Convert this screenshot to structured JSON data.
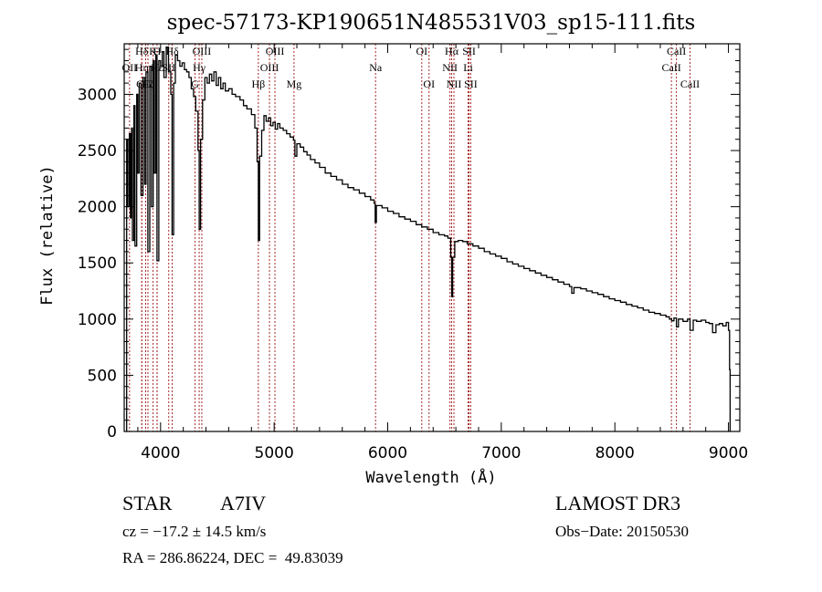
{
  "chart_data": {
    "type": "line",
    "title": "spec-57173-KP190651N485531V03_sp15-111.fits",
    "xlabel": "Wavelength (Å)",
    "ylabel": "Flux (relative)",
    "xlim": [
      3680,
      9100
    ],
    "ylim": [
      0,
      3450
    ],
    "grid": false,
    "legend": "none",
    "xticks": [
      4000,
      5000,
      6000,
      7000,
      8000,
      9000
    ],
    "xtick_labels": [
      "4000",
      "5000",
      "6000",
      "7000",
      "8000",
      "9000"
    ],
    "yticks": [
      0,
      500,
      1000,
      1500,
      2000,
      2500,
      3000
    ],
    "ytick_labels": [
      "0",
      "500",
      "1000",
      "1500",
      "2000",
      "2500",
      "3000"
    ],
    "series": [
      {
        "name": "spectrum",
        "color": "#000000",
        "points": [
          [
            3700,
            0
          ],
          [
            3702,
            2600
          ],
          [
            3712,
            2000
          ],
          [
            3725,
            2650
          ],
          [
            3735,
            1900
          ],
          [
            3745,
            2700
          ],
          [
            3752,
            1700
          ],
          [
            3765,
            2900
          ],
          [
            3775,
            1650
          ],
          [
            3790,
            3000
          ],
          [
            3800,
            2300
          ],
          [
            3812,
            3100
          ],
          [
            3828,
            2100
          ],
          [
            3845,
            3150
          ],
          [
            3860,
            2200
          ],
          [
            3872,
            3200
          ],
          [
            3888,
            1600
          ],
          [
            3905,
            3250
          ],
          [
            3920,
            2000
          ],
          [
            3935,
            3300
          ],
          [
            3945,
            2300
          ],
          [
            3958,
            3350
          ],
          [
            3969,
            1520
          ],
          [
            3985,
            3300
          ],
          [
            4000,
            3250
          ],
          [
            4015,
            3380
          ],
          [
            4030,
            3150
          ],
          [
            4050,
            3420
          ],
          [
            4070,
            3200
          ],
          [
            4090,
            3000
          ],
          [
            4101,
            1750
          ],
          [
            4115,
            3100
          ],
          [
            4130,
            3350
          ],
          [
            4150,
            3300
          ],
          [
            4170,
            3250
          ],
          [
            4190,
            3280
          ],
          [
            4210,
            3220
          ],
          [
            4230,
            3200
          ],
          [
            4250,
            3150
          ],
          [
            4270,
            3050
          ],
          [
            4290,
            2980
          ],
          [
            4310,
            2850
          ],
          [
            4330,
            2500
          ],
          [
            4340,
            1800
          ],
          [
            4352,
            2600
          ],
          [
            4370,
            2950
          ],
          [
            4390,
            3150
          ],
          [
            4410,
            3100
          ],
          [
            4430,
            3180
          ],
          [
            4450,
            3120
          ],
          [
            4470,
            3200
          ],
          [
            4490,
            3080
          ],
          [
            4510,
            3150
          ],
          [
            4530,
            3050
          ],
          [
            4550,
            3100
          ],
          [
            4570,
            3030
          ],
          [
            4600,
            3050
          ],
          [
            4630,
            3000
          ],
          [
            4660,
            2980
          ],
          [
            4700,
            2950
          ],
          [
            4730,
            2900
          ],
          [
            4760,
            2870
          ],
          [
            4800,
            2820
          ],
          [
            4830,
            2700
          ],
          [
            4850,
            2400
          ],
          [
            4861,
            1700
          ],
          [
            4872,
            2450
          ],
          [
            4890,
            2680
          ],
          [
            4910,
            2810
          ],
          [
            4930,
            2760
          ],
          [
            4950,
            2790
          ],
          [
            4970,
            2720
          ],
          [
            4990,
            2750
          ],
          [
            5010,
            2690
          ],
          [
            5030,
            2740
          ],
          [
            5050,
            2700
          ],
          [
            5080,
            2680
          ],
          [
            5110,
            2650
          ],
          [
            5140,
            2620
          ],
          [
            5170,
            2590
          ],
          [
            5183,
            2450
          ],
          [
            5200,
            2560
          ],
          [
            5230,
            2530
          ],
          [
            5260,
            2490
          ],
          [
            5290,
            2460
          ],
          [
            5320,
            2420
          ],
          [
            5360,
            2390
          ],
          [
            5400,
            2350
          ],
          [
            5450,
            2300
          ],
          [
            5500,
            2270
          ],
          [
            5550,
            2240
          ],
          [
            5600,
            2200
          ],
          [
            5650,
            2170
          ],
          [
            5700,
            2150
          ],
          [
            5750,
            2120
          ],
          [
            5800,
            2090
          ],
          [
            5850,
            2060
          ],
          [
            5880,
            2030
          ],
          [
            5890,
            1860
          ],
          [
            5900,
            2010
          ],
          [
            5950,
            1990
          ],
          [
            6000,
            1960
          ],
          [
            6050,
            1940
          ],
          [
            6100,
            1910
          ],
          [
            6150,
            1890
          ],
          [
            6200,
            1870
          ],
          [
            6250,
            1840
          ],
          [
            6300,
            1820
          ],
          [
            6350,
            1800
          ],
          [
            6400,
            1770
          ],
          [
            6450,
            1750
          ],
          [
            6500,
            1740
          ],
          [
            6530,
            1720
          ],
          [
            6555,
            1550
          ],
          [
            6563,
            1200
          ],
          [
            6572,
            1550
          ],
          [
            6590,
            1690
          ],
          [
            6620,
            1700
          ],
          [
            6660,
            1690
          ],
          [
            6700,
            1670
          ],
          [
            6750,
            1650
          ],
          [
            6800,
            1630
          ],
          [
            6850,
            1600
          ],
          [
            6900,
            1580
          ],
          [
            6950,
            1560
          ],
          [
            7000,
            1540
          ],
          [
            7050,
            1510
          ],
          [
            7100,
            1490
          ],
          [
            7150,
            1470
          ],
          [
            7200,
            1450
          ],
          [
            7250,
            1430
          ],
          [
            7300,
            1410
          ],
          [
            7350,
            1390
          ],
          [
            7400,
            1370
          ],
          [
            7450,
            1350
          ],
          [
            7500,
            1330
          ],
          [
            7550,
            1310
          ],
          [
            7600,
            1290
          ],
          [
            7620,
            1230
          ],
          [
            7640,
            1280
          ],
          [
            7700,
            1270
          ],
          [
            7750,
            1250
          ],
          [
            7800,
            1235
          ],
          [
            7850,
            1220
          ],
          [
            7900,
            1200
          ],
          [
            7950,
            1180
          ],
          [
            8000,
            1165
          ],
          [
            8050,
            1150
          ],
          [
            8100,
            1130
          ],
          [
            8150,
            1115
          ],
          [
            8200,
            1100
          ],
          [
            8250,
            1080
          ],
          [
            8300,
            1060
          ],
          [
            8350,
            1050
          ],
          [
            8400,
            1035
          ],
          [
            8450,
            1020
          ],
          [
            8480,
            1000
          ],
          [
            8500,
            985
          ],
          [
            8520,
            1010
          ],
          [
            8542,
            930
          ],
          [
            8560,
            1000
          ],
          [
            8600,
            980
          ],
          [
            8640,
            1000
          ],
          [
            8662,
            900
          ],
          [
            8690,
            990
          ],
          [
            8720,
            980
          ],
          [
            8760,
            990
          ],
          [
            8800,
            970
          ],
          [
            8830,
            960
          ],
          [
            8860,
            880
          ],
          [
            8890,
            950
          ],
          [
            8920,
            960
          ],
          [
            8950,
            940
          ],
          [
            8980,
            970
          ],
          [
            9000,
            900
          ],
          [
            9010,
            550
          ],
          [
            9015,
            0
          ]
        ]
      }
    ],
    "lines": [
      {
        "name": "Hδ-group",
        "label": "Hδ",
        "wavelength": 3835,
        "row": 0
      },
      {
        "name": "K",
        "label": "K",
        "wavelength": 3934,
        "row": 0
      },
      {
        "name": "H",
        "label": "H",
        "wavelength": 3969,
        "row": 0
      },
      {
        "name": "Hδ",
        "label": "Hδ",
        "wavelength": 4102,
        "row": 0
      },
      {
        "name": "OIII-4363",
        "label": "OIII",
        "wavelength": 4363,
        "row": 0
      },
      {
        "name": "OII",
        "label": "OII",
        "wavelength": 3727,
        "row": 1
      },
      {
        "name": "Hη",
        "label": "Hη",
        "wavelength": 3835,
        "row": 1
      },
      {
        "name": "Hε",
        "label": "Hε",
        "wavelength": 3970,
        "row": 1
      },
      {
        "name": "SII-4072",
        "label": "SII",
        "wavelength": 4072,
        "row": 1
      },
      {
        "name": "Hγ",
        "label": "Hγ",
        "wavelength": 4340,
        "row": 1
      },
      {
        "name": "OIII-3869",
        "label": "OIII",
        "wavelength": 3869,
        "row": 2
      },
      {
        "name": "Hζ",
        "label": "Hζ",
        "wavelength": 3889,
        "row": 2
      },
      {
        "name": "G",
        "label": "G",
        "wavelength": 4304,
        "row": 2
      },
      {
        "name": "Hβ",
        "label": "Hβ",
        "wavelength": 4861,
        "row": 2
      },
      {
        "name": "OIII-5007",
        "label": "OIII",
        "wavelength": 5007,
        "row": 0
      },
      {
        "name": "OIII-4959",
        "label": "OIII",
        "wavelength": 4959,
        "row": 1
      },
      {
        "name": "Mg",
        "label": "Mg",
        "wavelength": 5175,
        "row": 2
      },
      {
        "name": "Na",
        "label": "Na",
        "wavelength": 5893,
        "row": 1
      },
      {
        "name": "OI-6300",
        "label": "OI",
        "wavelength": 6300,
        "row": 0
      },
      {
        "name": "OI-6364",
        "label": "OI",
        "wavelength": 6364,
        "row": 2
      },
      {
        "name": "Hα",
        "label": "Hα",
        "wavelength": 6563,
        "row": 0
      },
      {
        "name": "NII-6548",
        "label": "NII",
        "wavelength": 6548,
        "row": 1
      },
      {
        "name": "NII-6583",
        "label": "NII",
        "wavelength": 6583,
        "row": 2
      },
      {
        "name": "SII-6716",
        "label": "SII",
        "wavelength": 6716,
        "row": 0
      },
      {
        "name": "Li",
        "label": "Li",
        "wavelength": 6708,
        "row": 1
      },
      {
        "name": "SII-6731",
        "label": "SII",
        "wavelength": 6731,
        "row": 2
      },
      {
        "name": "CaII-8542",
        "label": "CaII",
        "wavelength": 8542,
        "row": 0
      },
      {
        "name": "CaII-8498",
        "label": "CaII",
        "wavelength": 8498,
        "row": 1
      },
      {
        "name": "CaII-8662",
        "label": "CaII",
        "wavelength": 8662,
        "row": 2
      }
    ],
    "line_color": "#a52a2a"
  },
  "info": {
    "object_class": "STAR",
    "subclass": "A7IV",
    "survey": "LAMOST DR3",
    "redshift": "cz = −17.2 ± 14.5 km/s",
    "obs_date": "Obs−Date: 20150530",
    "coords": "RA = 286.86224, DEC =  49.83039"
  }
}
